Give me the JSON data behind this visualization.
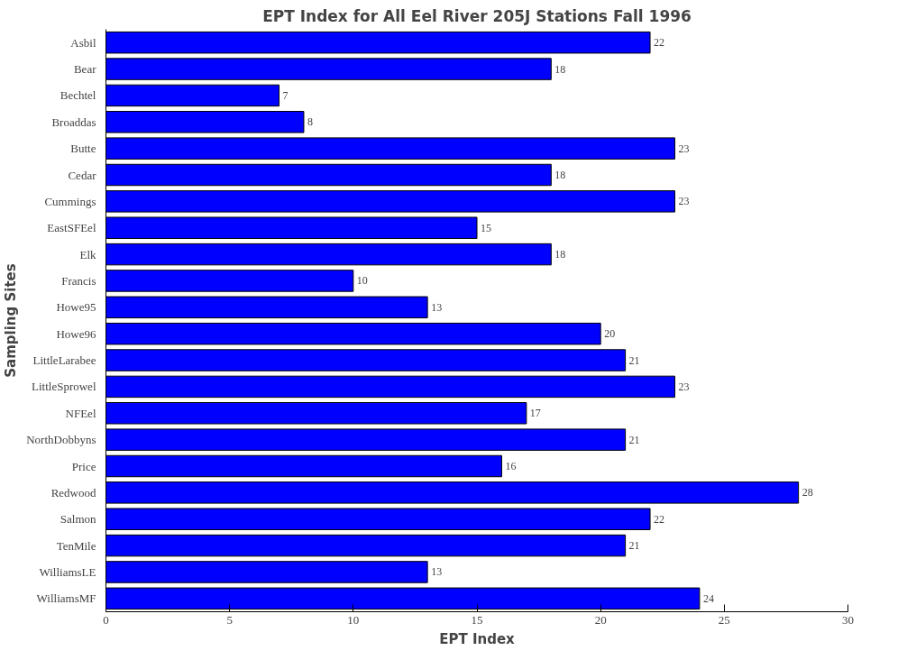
{
  "chart_data": {
    "type": "bar",
    "orientation": "horizontal",
    "title": "EPT Index for All Eel River 205J Stations Fall 1996",
    "xlabel": "EPT Index",
    "ylabel": "Sampling Sites",
    "categories": [
      "Asbil",
      "Bear",
      "Bechtel",
      "Broaddas",
      "Butte",
      "Cedar",
      "Cummings",
      "EastSFEel",
      "Elk",
      "Francis",
      "Howe95",
      "Howe96",
      "LittleLarabee",
      "LittleSprowel",
      "NFEel",
      "NorthDobbyns",
      "Price",
      "Redwood",
      "Salmon",
      "TenMile",
      "WilliamsLE",
      "WilliamsMF"
    ],
    "values": [
      22,
      18,
      7,
      8,
      23,
      18,
      23,
      15,
      18,
      10,
      13,
      20,
      21,
      23,
      17,
      21,
      16,
      28,
      22,
      21,
      13,
      24
    ],
    "color": "#0000ff",
    "xlim": [
      0,
      30
    ],
    "xticks": [
      0,
      5,
      10,
      15,
      20,
      25,
      30
    ],
    "grid": false,
    "data_labels": true
  }
}
